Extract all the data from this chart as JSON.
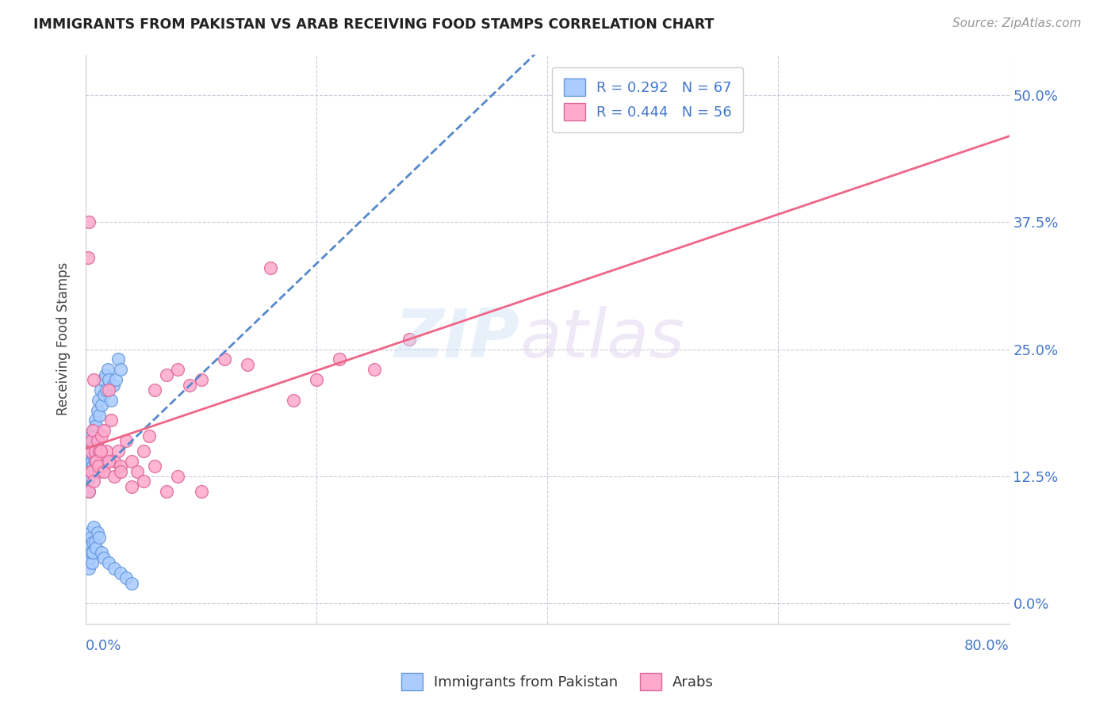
{
  "title": "IMMIGRANTS FROM PAKISTAN VS ARAB RECEIVING FOOD STAMPS CORRELATION CHART",
  "source": "Source: ZipAtlas.com",
  "ylabel": "Receiving Food Stamps",
  "ytick_labels": [
    "0.0%",
    "12.5%",
    "25.0%",
    "37.5%",
    "50.0%"
  ],
  "ytick_values": [
    0.0,
    12.5,
    25.0,
    37.5,
    50.0
  ],
  "xlim": [
    0.0,
    80.0
  ],
  "ylim": [
    -2.0,
    54.0
  ],
  "R_pakistan": "0.292",
  "N_pakistan": "67",
  "R_arab": "0.444",
  "N_arab": "56",
  "color_pakistan_fill": "#aaccff",
  "color_pakistan_edge": "#6699dd",
  "color_arab_fill": "#ffaacc",
  "color_arab_edge": "#dd6699",
  "color_blue_text": "#4477cc",
  "color_trendline_pakistan": "#5588cc",
  "color_trendline_arab": "#ee6688",
  "pakistan_x": [
    0.1,
    0.15,
    0.2,
    0.2,
    0.25,
    0.3,
    0.3,
    0.35,
    0.4,
    0.4,
    0.45,
    0.5,
    0.5,
    0.5,
    0.55,
    0.6,
    0.6,
    0.65,
    0.7,
    0.7,
    0.75,
    0.8,
    0.8,
    0.85,
    0.9,
    0.9,
    1.0,
    1.0,
    1.1,
    1.2,
    1.3,
    1.4,
    1.5,
    1.6,
    1.7,
    1.8,
    1.9,
    2.0,
    2.2,
    2.4,
    2.6,
    2.8,
    3.0,
    0.1,
    0.15,
    0.2,
    0.25,
    0.3,
    0.35,
    0.4,
    0.45,
    0.5,
    0.55,
    0.6,
    0.65,
    0.7,
    0.8,
    0.9,
    1.0,
    1.2,
    1.4,
    1.6,
    2.0,
    2.5,
    3.0,
    3.5,
    4.0
  ],
  "pakistan_y": [
    14.0,
    13.5,
    15.0,
    12.0,
    16.0,
    14.5,
    11.0,
    13.0,
    15.5,
    12.5,
    14.0,
    13.0,
    15.0,
    16.5,
    14.0,
    15.0,
    13.5,
    16.0,
    17.0,
    14.5,
    15.5,
    18.0,
    14.0,
    16.5,
    15.0,
    17.5,
    19.0,
    16.0,
    20.0,
    18.5,
    21.0,
    19.5,
    22.0,
    20.5,
    22.5,
    21.0,
    23.0,
    22.0,
    20.0,
    21.5,
    22.0,
    24.0,
    23.0,
    5.0,
    4.0,
    6.0,
    5.5,
    3.5,
    4.5,
    7.0,
    6.5,
    5.0,
    4.0,
    6.0,
    5.0,
    7.5,
    6.0,
    5.5,
    7.0,
    6.5,
    5.0,
    4.5,
    4.0,
    3.5,
    3.0,
    2.5,
    2.0
  ],
  "arab_x": [
    0.2,
    0.3,
    0.4,
    0.5,
    0.5,
    0.6,
    0.7,
    0.8,
    0.9,
    1.0,
    1.1,
    1.2,
    1.3,
    1.4,
    1.5,
    1.6,
    1.8,
    2.0,
    2.2,
    2.5,
    2.8,
    3.0,
    3.5,
    4.0,
    4.5,
    5.0,
    5.5,
    6.0,
    7.0,
    8.0,
    9.0,
    10.0,
    12.0,
    14.0,
    16.0,
    18.0,
    20.0,
    22.0,
    25.0,
    28.0,
    0.3,
    0.5,
    0.7,
    0.9,
    1.1,
    1.3,
    1.6,
    2.0,
    2.5,
    3.0,
    4.0,
    5.0,
    6.0,
    7.0,
    8.0,
    10.0
  ],
  "arab_y": [
    34.0,
    37.5,
    15.0,
    16.0,
    13.0,
    17.0,
    22.0,
    15.0,
    14.0,
    16.0,
    13.0,
    15.0,
    14.0,
    16.5,
    13.5,
    17.0,
    15.0,
    21.0,
    18.0,
    14.0,
    15.0,
    13.5,
    16.0,
    14.0,
    13.0,
    15.0,
    16.5,
    21.0,
    22.5,
    23.0,
    21.5,
    22.0,
    24.0,
    23.5,
    33.0,
    20.0,
    22.0,
    24.0,
    23.0,
    26.0,
    11.0,
    13.0,
    12.0,
    14.0,
    13.5,
    15.0,
    13.0,
    14.0,
    12.5,
    13.0,
    11.5,
    12.0,
    13.5,
    11.0,
    12.5,
    11.0
  ]
}
